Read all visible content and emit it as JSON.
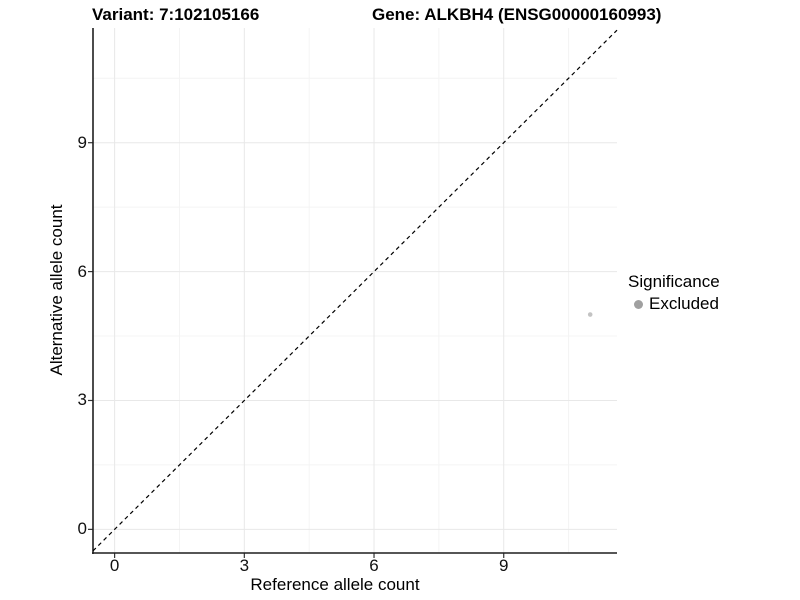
{
  "titles": {
    "variant": "Variant: 7:102105166",
    "gene": "Gene: ALKBH4 (ENSG00000160993)"
  },
  "chart_data": {
    "type": "scatter",
    "title_left": "Variant: 7:102105166",
    "title_right": "Gene: ALKBH4 (ENSG00000160993)",
    "xlabel": "Reference allele count",
    "ylabel": "Alternative allele count",
    "xlim": [
      -0.5,
      11.62
    ],
    "ylim": [
      -0.55,
      11.67
    ],
    "x_major_ticks": [
      0,
      3,
      6,
      9
    ],
    "y_major_ticks": [
      0,
      3,
      6,
      9
    ],
    "x_minor_gridlines": [
      1.5,
      4.5,
      7.5,
      10.5
    ],
    "y_minor_gridlines": [
      1.5,
      4.5,
      7.5,
      10.5
    ],
    "grid": "major+minor light gray, left/bottom black axis lines only",
    "points": [
      {
        "x": 11,
        "y": 5,
        "significance": "Excluded"
      }
    ],
    "identity_line": {
      "slope": 1,
      "intercept": 0,
      "style": "dashed"
    },
    "legend": {
      "title": "Significance",
      "position": "right",
      "entries": [
        {
          "label": "Excluded",
          "marker_color": "#a0a0a0"
        }
      ]
    },
    "colors": {
      "background": "#ffffff",
      "point": "#c3c3c3",
      "axis_line": "#1f1f1f",
      "tick_mark": "#333333",
      "grid_major": "#e8e8e8",
      "grid_minor": "#f4f4f4",
      "identity_line": "#000000",
      "text": "#000000"
    }
  }
}
